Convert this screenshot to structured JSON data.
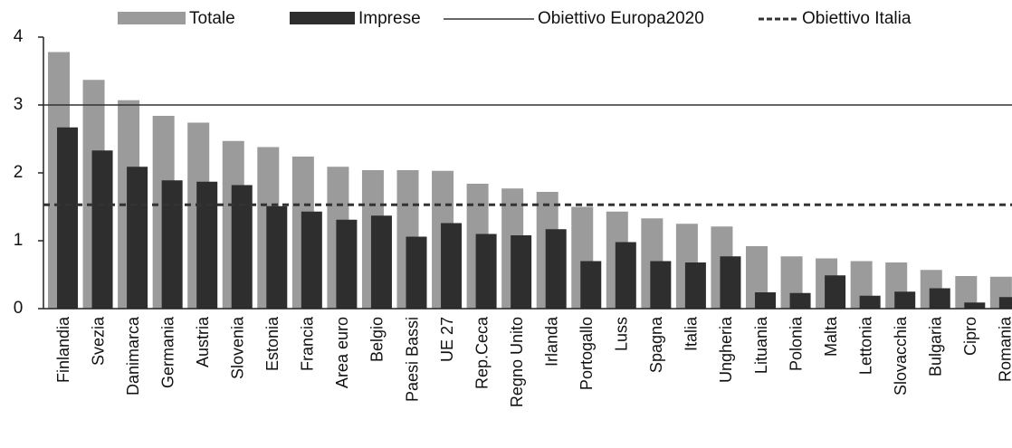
{
  "chart_data": {
    "type": "bar",
    "categories": [
      "Finlandia",
      "Svezia",
      "Danimarca",
      "Germania",
      "Austria",
      "Slovenia",
      "Estonia",
      "Francia",
      "Area euro",
      "Belgio",
      "Paesi Bassi",
      "UE 27",
      "Rep.Ceca",
      "Regno Unito",
      "Irlanda",
      "Portogallo",
      "Luss",
      "Spagna",
      "Italia",
      "Ungheria",
      "Lituania",
      "Polonia",
      "Malta",
      "Lettonia",
      "Slovacchia",
      "Bulgaria",
      "Cipro",
      "Romania"
    ],
    "series": [
      {
        "name": "Totale",
        "color": "#9b9b9b",
        "values": [
          3.78,
          3.37,
          3.07,
          2.84,
          2.74,
          2.47,
          2.38,
          2.24,
          2.09,
          2.04,
          2.04,
          2.03,
          1.84,
          1.77,
          1.72,
          1.5,
          1.43,
          1.33,
          1.25,
          1.21,
          0.92,
          0.77,
          0.74,
          0.7,
          0.68,
          0.57,
          0.48,
          0.47
        ]
      },
      {
        "name": "Imprese",
        "color": "#2e2e2e",
        "values": [
          2.67,
          2.33,
          2.09,
          1.89,
          1.87,
          1.82,
          1.51,
          1.43,
          1.31,
          1.37,
          1.06,
          1.26,
          1.1,
          1.08,
          1.17,
          0.7,
          0.98,
          0.7,
          0.68,
          0.77,
          0.24,
          0.23,
          0.49,
          0.19,
          0.25,
          0.3,
          0.09,
          0.17
        ]
      }
    ],
    "lines": [
      {
        "name": "Obiettivo Europa2020",
        "value": 3,
        "style": "solid",
        "color": "#333333"
      },
      {
        "name": "Obiettivo Italia",
        "value": 1.53,
        "style": "dashed",
        "color": "#333333"
      }
    ],
    "ylim": [
      0,
      4
    ],
    "yticks": [
      0,
      1,
      2,
      3,
      4
    ],
    "grid": false
  }
}
